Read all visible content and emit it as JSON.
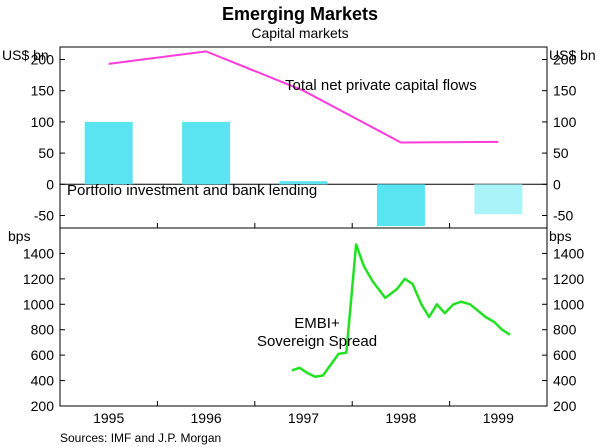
{
  "title": "Emerging Markets",
  "subtitle": "Capital markets",
  "source": "Sources:  IMF and J.P. Morgan",
  "colors": {
    "magenta": "#ff3bd9",
    "cyan": "#5ae4f2",
    "cyan_light": "#aaf3f8",
    "green": "#22e022",
    "axis": "#000000"
  },
  "chart_data": [
    {
      "type": "bar+line",
      "panel": "top",
      "ylabel": "US$ bn",
      "ylim": [
        -70,
        220
      ],
      "yticks": [
        -50,
        0,
        50,
        100,
        150,
        200
      ],
      "x_categories": [
        "1995",
        "1996",
        "1997",
        "1998",
        "1999"
      ],
      "series": [
        {
          "name": "Portfolio investment and bank lending",
          "kind": "bar",
          "values": [
            100,
            100,
            5,
            -67,
            -48
          ]
        },
        {
          "name": "Total net private capital flows",
          "kind": "line",
          "x": [
            1995.5,
            1996.5,
            1997.5,
            1998.5,
            1999.5
          ],
          "values": [
            193,
            213,
            150,
            67,
            68
          ]
        }
      ]
    },
    {
      "type": "line",
      "panel": "bottom",
      "ylabel": "bps",
      "ylim": [
        200,
        1600
      ],
      "yticks": [
        200,
        400,
        600,
        800,
        1000,
        1200,
        1400
      ],
      "xlim": [
        1995,
        2000
      ],
      "xticks": [
        "1995",
        "1996",
        "1997",
        "1998",
        "1999"
      ],
      "series": [
        {
          "name": "EMBI+ Sovereign Spread",
          "label_lines": [
            "EMBI+",
            "Sovereign Spread"
          ],
          "x": [
            1997.38,
            1997.46,
            1997.54,
            1997.62,
            1997.7,
            1997.86,
            1997.94,
            1998.04,
            1998.12,
            1998.21,
            1998.34,
            1998.46,
            1998.54,
            1998.62,
            1998.71,
            1998.79,
            1998.87,
            1998.95,
            1999.04,
            1999.12,
            1999.21,
            1999.29,
            1999.37,
            1999.46,
            1999.54,
            1999.62
          ],
          "values": [
            480,
            500,
            460,
            430,
            440,
            610,
            620,
            1470,
            1300,
            1180,
            1050,
            1120,
            1200,
            1160,
            1000,
            900,
            1000,
            930,
            1000,
            1020,
            1000,
            950,
            900,
            860,
            800,
            760
          ]
        }
      ]
    }
  ]
}
